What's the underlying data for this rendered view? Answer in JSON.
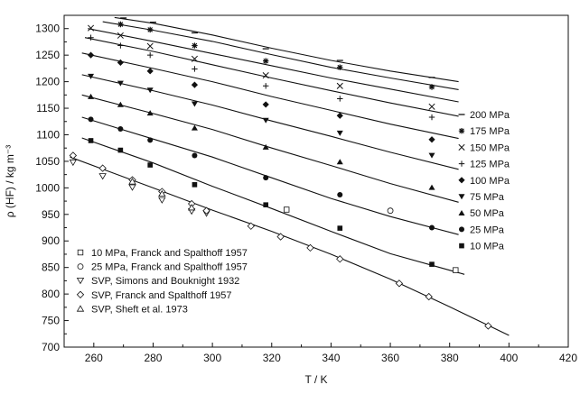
{
  "chart_data": {
    "type": "scatter",
    "xlabel": "T / K",
    "ylabel": "ρ (HF)  / kg m⁻³",
    "xlim": [
      250,
      420
    ],
    "ylim": [
      700,
      1325
    ],
    "xticks": [
      260,
      280,
      300,
      320,
      340,
      360,
      380,
      400,
      420
    ],
    "yticks": [
      700,
      750,
      800,
      850,
      900,
      950,
      1000,
      1050,
      1100,
      1150,
      1200,
      1250,
      1300
    ],
    "grid": false,
    "legend_isobars": "right",
    "legend_literature": "bottom-left",
    "isobar_series": [
      {
        "name": "200 MPa",
        "marker": "dash",
        "line": [
          [
            267,
            1321
          ],
          [
            280,
            1310
          ],
          [
            300,
            1288
          ],
          [
            320,
            1263
          ],
          [
            340,
            1240
          ],
          [
            360,
            1220
          ],
          [
            383,
            1200
          ]
        ],
        "points": [
          [
            270,
            1320
          ],
          [
            280,
            1312
          ],
          [
            294,
            1292
          ],
          [
            318,
            1262
          ],
          [
            343,
            1240
          ],
          [
            374,
            1208
          ]
        ]
      },
      {
        "name": "175 MPa",
        "marker": "asterisk",
        "line": [
          [
            263,
            1313
          ],
          [
            280,
            1297
          ],
          [
            300,
            1276
          ],
          [
            320,
            1251
          ],
          [
            340,
            1227
          ],
          [
            360,
            1207
          ],
          [
            383,
            1185
          ]
        ],
        "points": [
          [
            269,
            1308
          ],
          [
            279,
            1298
          ],
          [
            294,
            1268
          ],
          [
            318,
            1239
          ],
          [
            343,
            1227
          ],
          [
            374,
            1190
          ]
        ]
      },
      {
        "name": "150 MPa",
        "marker": "x",
        "line": [
          [
            258,
            1300
          ],
          [
            280,
            1276
          ],
          [
            300,
            1253
          ],
          [
            320,
            1230
          ],
          [
            340,
            1207
          ],
          [
            360,
            1186
          ],
          [
            383,
            1162
          ]
        ],
        "points": [
          [
            259,
            1301
          ],
          [
            269,
            1287
          ],
          [
            279,
            1267
          ],
          [
            294,
            1243
          ],
          [
            318,
            1212
          ],
          [
            343,
            1192
          ],
          [
            374,
            1153
          ]
        ]
      },
      {
        "name": "125 MPa",
        "marker": "plus",
        "line": [
          [
            257,
            1283
          ],
          [
            280,
            1257
          ],
          [
            300,
            1232
          ],
          [
            320,
            1207
          ],
          [
            340,
            1183
          ],
          [
            360,
            1160
          ],
          [
            383,
            1135
          ]
        ],
        "points": [
          [
            259,
            1283
          ],
          [
            269,
            1268
          ],
          [
            279,
            1250
          ],
          [
            294,
            1224
          ],
          [
            318,
            1192
          ],
          [
            343,
            1168
          ],
          [
            374,
            1133
          ]
        ]
      },
      {
        "name": "100 MPa",
        "marker": "diamond",
        "line": [
          [
            256,
            1254
          ],
          [
            280,
            1225
          ],
          [
            300,
            1200
          ],
          [
            320,
            1172
          ],
          [
            340,
            1146
          ],
          [
            360,
            1120
          ],
          [
            383,
            1093
          ]
        ],
        "points": [
          [
            259,
            1250
          ],
          [
            269,
            1236
          ],
          [
            279,
            1220
          ],
          [
            294,
            1194
          ],
          [
            318,
            1157
          ],
          [
            343,
            1136
          ],
          [
            374,
            1091
          ]
        ]
      },
      {
        "name": "75 MPa",
        "marker": "triangle-down",
        "line": [
          [
            256,
            1213
          ],
          [
            280,
            1183
          ],
          [
            300,
            1156
          ],
          [
            320,
            1126
          ],
          [
            340,
            1097
          ],
          [
            360,
            1067
          ],
          [
            383,
            1035
          ]
        ],
        "points": [
          [
            259,
            1210
          ],
          [
            269,
            1197
          ],
          [
            279,
            1184
          ],
          [
            294,
            1158
          ],
          [
            318,
            1127
          ],
          [
            343,
            1103
          ],
          [
            374,
            1061
          ]
        ]
      },
      {
        "name": "50 MPa",
        "marker": "triangle-up",
        "line": [
          [
            256,
            1175
          ],
          [
            280,
            1140
          ],
          [
            300,
            1110
          ],
          [
            320,
            1075
          ],
          [
            340,
            1042
          ],
          [
            360,
            1008
          ],
          [
            383,
            973
          ]
        ],
        "points": [
          [
            259,
            1172
          ],
          [
            269,
            1157
          ],
          [
            279,
            1141
          ],
          [
            294,
            1113
          ],
          [
            318,
            1077
          ],
          [
            343,
            1049
          ],
          [
            374,
            1001
          ]
        ]
      },
      {
        "name": "25 MPa",
        "marker": "circle-filled",
        "line": [
          [
            256,
            1133
          ],
          [
            280,
            1092
          ],
          [
            300,
            1058
          ],
          [
            320,
            1019
          ],
          [
            340,
            980
          ],
          [
            360,
            946
          ],
          [
            383,
            912
          ]
        ],
        "points": [
          [
            259,
            1129
          ],
          [
            269,
            1111
          ],
          [
            279,
            1090
          ],
          [
            294,
            1061
          ],
          [
            318,
            1019
          ],
          [
            343,
            987
          ],
          [
            374,
            925
          ]
        ]
      },
      {
        "name": "10 MPa",
        "marker": "square-filled",
        "line": [
          [
            256,
            1094
          ],
          [
            280,
            1047
          ],
          [
            300,
            1003
          ],
          [
            320,
            961
          ],
          [
            340,
            918
          ],
          [
            360,
            876
          ],
          [
            385,
            837
          ]
        ],
        "points": [
          [
            259,
            1089
          ],
          [
            269,
            1071
          ],
          [
            279,
            1043
          ],
          [
            294,
            1006
          ],
          [
            318,
            968
          ],
          [
            343,
            924
          ],
          [
            374,
            856
          ]
        ]
      }
    ],
    "svp_line": [
      [
        252,
        1058
      ],
      [
        280,
        1000
      ],
      [
        300,
        958
      ],
      [
        320,
        918
      ],
      [
        340,
        875
      ],
      [
        360,
        828
      ],
      [
        380,
        776
      ],
      [
        400,
        722
      ]
    ],
    "literature_series": [
      {
        "name": "10 MPa, Franck and Spalthoff 1957",
        "marker": "square-open",
        "points": [
          [
            325,
            959
          ],
          [
            382,
            845
          ]
        ]
      },
      {
        "name": "25 MPa, Franck and Spalthoff 1957",
        "marker": "circle-open",
        "points": [
          [
            360,
            957
          ]
        ]
      },
      {
        "name": "SVP, Simons and Bouknight 1932",
        "marker": "triangle-down-open",
        "points": [
          [
            253,
            1048
          ],
          [
            263,
            1022
          ],
          [
            273,
            1001
          ],
          [
            283,
            977
          ],
          [
            293,
            956
          ],
          [
            298,
            952
          ]
        ]
      },
      {
        "name": "SVP, Franck and Spalthoff 1957",
        "marker": "diamond-open",
        "points": [
          [
            253,
            1061
          ],
          [
            263,
            1037
          ],
          [
            273,
            1015
          ],
          [
            283,
            993
          ],
          [
            293,
            970
          ],
          [
            298,
            957
          ],
          [
            313,
            928
          ],
          [
            323,
            908
          ],
          [
            333,
            887
          ],
          [
            343,
            866
          ],
          [
            363,
            820
          ],
          [
            373,
            795
          ],
          [
            393,
            740
          ]
        ]
      },
      {
        "name": "SVP, Sheft et al. 1973",
        "marker": "triangle-up-open",
        "points": [
          [
            273,
            1012
          ],
          [
            283,
            989
          ],
          [
            293,
            963
          ]
        ]
      }
    ]
  }
}
